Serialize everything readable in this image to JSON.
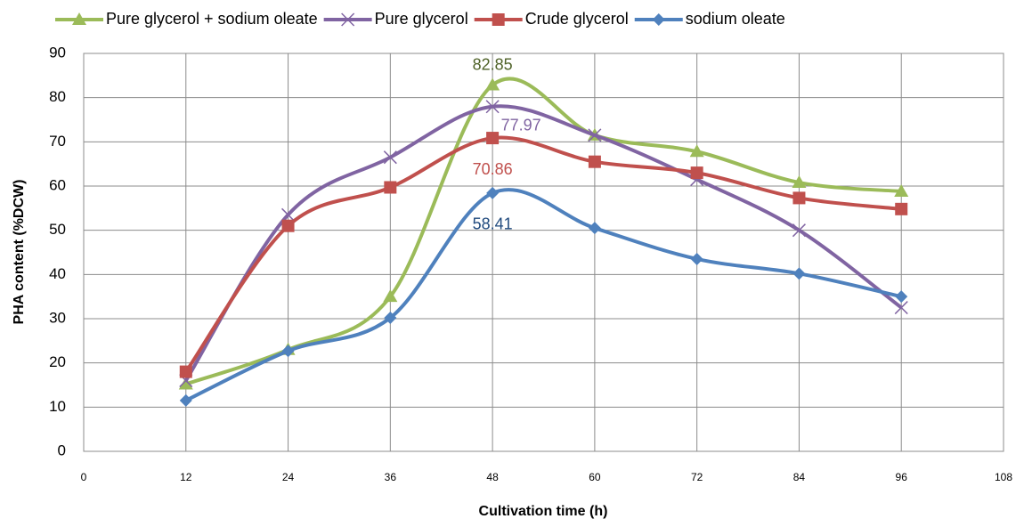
{
  "chart_data": {
    "type": "line",
    "xlabel": "Cultivation time (h)",
    "ylabel": "PHA content (%DCW)",
    "x": [
      12,
      24,
      36,
      48,
      60,
      72,
      84,
      96
    ],
    "xlim": [
      0,
      108
    ],
    "xticks": [
      0,
      12,
      24,
      36,
      48,
      60,
      72,
      84,
      96,
      108
    ],
    "ylim": [
      0,
      90
    ],
    "yticks": [
      0,
      10,
      20,
      30,
      40,
      50,
      60,
      70,
      80,
      90
    ],
    "grid": true,
    "smooth": true,
    "legend": "top",
    "data_labels": "max",
    "series": [
      {
        "name": "Pure glycerol + sodium oleate",
        "color": "#9bbb59",
        "label_color": "#4f6228",
        "marker": "triangle",
        "values": [
          15.2,
          23,
          35,
          82.85,
          71.5,
          67.8,
          60.8,
          58.8
        ]
      },
      {
        "name": "Pure glycerol",
        "color": "#8064a2",
        "label_color": "#8064a2",
        "marker": "x",
        "values": [
          16,
          53.5,
          66.5,
          77.97,
          71.5,
          61.5,
          50,
          32.5
        ]
      },
      {
        "name": "Crude glycerol",
        "color": "#c0504d",
        "label_color": "#c0504d",
        "marker": "square",
        "values": [
          18,
          51,
          59.7,
          70.86,
          65.5,
          63,
          57.3,
          54.8
        ]
      },
      {
        "name": "sodium oleate",
        "color": "#4f81bd",
        "label_color": "#1f497d",
        "marker": "diamond",
        "values": [
          11.5,
          22.7,
          30.2,
          58.41,
          50.5,
          43.5,
          40.2,
          35
        ]
      }
    ]
  }
}
